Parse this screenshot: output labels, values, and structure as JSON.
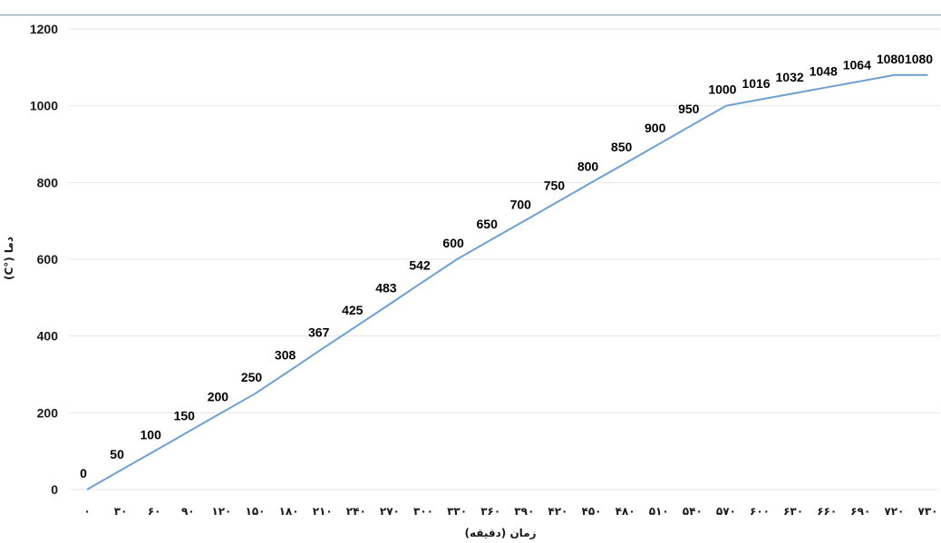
{
  "chart_data": {
    "type": "line",
    "title": "",
    "xlabel": "زمان (دقیقه)",
    "ylabel": "دما (°C)",
    "ylim": [
      0,
      1200
    ],
    "y_ticks": [
      "0",
      "200",
      "400",
      "600",
      "800",
      "1000",
      "1200"
    ],
    "grid": true,
    "line_color": "#6f9fd0",
    "x": [
      "۰",
      "۳۰",
      "۶۰",
      "۹۰",
      "۱۲۰",
      "۱۵۰",
      "۱۸۰",
      "۲۱۰",
      "۲۴۰",
      "۲۷۰",
      "۳۰۰",
      "۳۳۰",
      "۳۶۰",
      "۳۹۰",
      "۴۲۰",
      "۴۵۰",
      "۴۸۰",
      "۵۱۰",
      "۵۴۰",
      "۵۷۰",
      "۶۰۰",
      "۶۳۰",
      "۶۶۰",
      "۶۹۰",
      "۷۲۰",
      "۷۳۰"
    ],
    "values": [
      0,
      50,
      100,
      150,
      200,
      250,
      308,
      367,
      425,
      483,
      542,
      600,
      650,
      700,
      750,
      800,
      850,
      900,
      950,
      1000,
      1016,
      1032,
      1048,
      1064,
      1080,
      1080
    ]
  }
}
